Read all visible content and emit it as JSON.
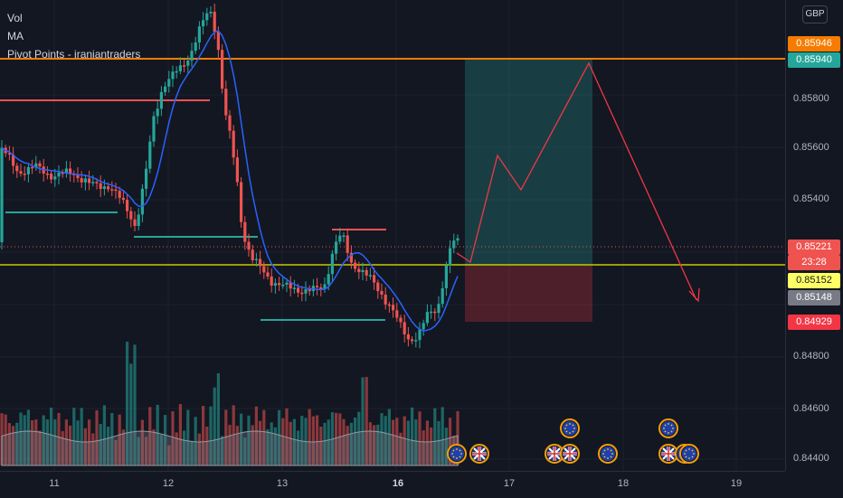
{
  "legend": {
    "vol": "Vol",
    "ma": "MA",
    "pivot": "Pivot Points - iraniantraders"
  },
  "currency": "GBP",
  "price_ticks": [
    "0.85800",
    "0.85600",
    "0.85400",
    "0.84800",
    "0.84600",
    "0.84400"
  ],
  "price_tags": [
    {
      "text": "0.85946",
      "bg": "#f57c00",
      "fg": "#ffffff"
    },
    {
      "text": "0.85940",
      "bg": "#26a69a",
      "fg": "#ffffff"
    },
    {
      "text": "0.85221",
      "bg": "#ef5350",
      "fg": "#ffffff"
    },
    {
      "text": "23:28",
      "bg": "#ef5350",
      "fg": "#ffffff"
    },
    {
      "text": "0.85152",
      "bg": "#ffff66",
      "fg": "#131722"
    },
    {
      "text": "0.85148",
      "bg": "#787b86",
      "fg": "#ffffff"
    },
    {
      "text": "0.84929",
      "bg": "#f23645",
      "fg": "#ffffff"
    }
  ],
  "time_ticks": [
    "11",
    "12",
    "13",
    "16",
    "17",
    "18",
    "19"
  ],
  "colors": {
    "up": "#26a69a",
    "down": "#ef5350",
    "ma_line": "#2962ff",
    "resistance": "#f57c00",
    "pivot_level": "#c8c800",
    "projection": "#f23645"
  },
  "events": [
    {
      "flag": "eu-flag-icon"
    },
    {
      "flag": "uk-flag-icon"
    },
    {
      "flag": "uk-flag-icon"
    },
    {
      "flag": "uk-flag-icon"
    },
    {
      "flag": "eu-flag-icon"
    },
    {
      "flag": "eu-flag-icon"
    },
    {
      "flag": "eu-flag-icon"
    },
    {
      "flag": "uk-flag-icon"
    },
    {
      "flag": "eu-flag-icon"
    },
    {
      "flag": "eu-flag-icon"
    }
  ]
}
